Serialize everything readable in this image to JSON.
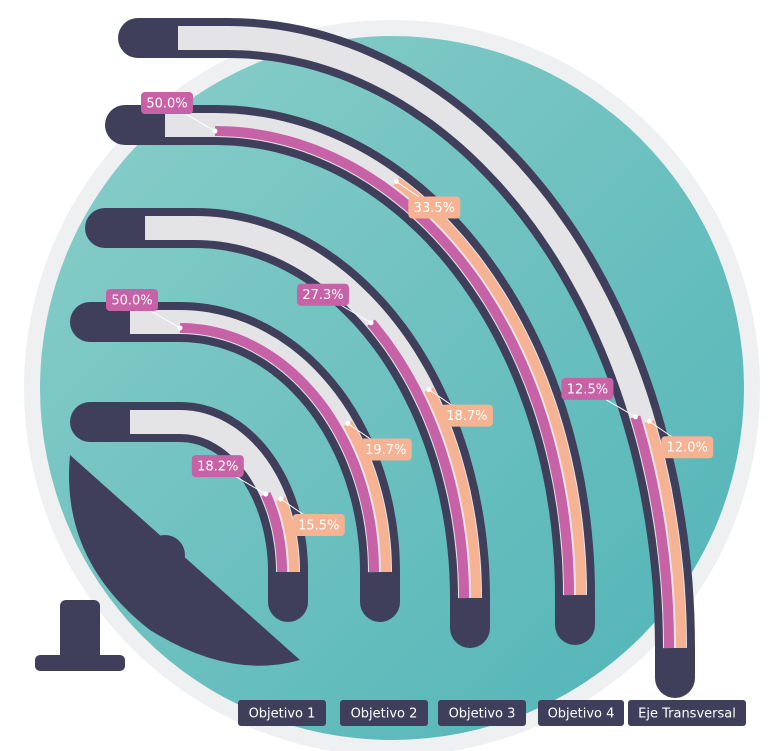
{
  "chart_data": {
    "type": "radial_bar",
    "categories": [
      "Objetivo 1",
      "Objetivo 2",
      "Objetivo 3",
      "Objetivo 4",
      "Eje Transversal"
    ],
    "series": [
      {
        "color": "#c862a6",
        "values": [
          18.2,
          50.0,
          27.3,
          50.0,
          12.5
        ],
        "value_labels": [
          "18.2%",
          "50.0%",
          "27.3%",
          "50.0%",
          "12.5%"
        ]
      },
      {
        "color": "#f6b394",
        "values": [
          15.5,
          19.7,
          18.7,
          33.5,
          12.0
        ],
        "value_labels": [
          "15.5%",
          "19.7%",
          "18.7%",
          "33.5%",
          "12.0%"
        ]
      }
    ],
    "vlim": [
      0,
      50
    ]
  }
}
